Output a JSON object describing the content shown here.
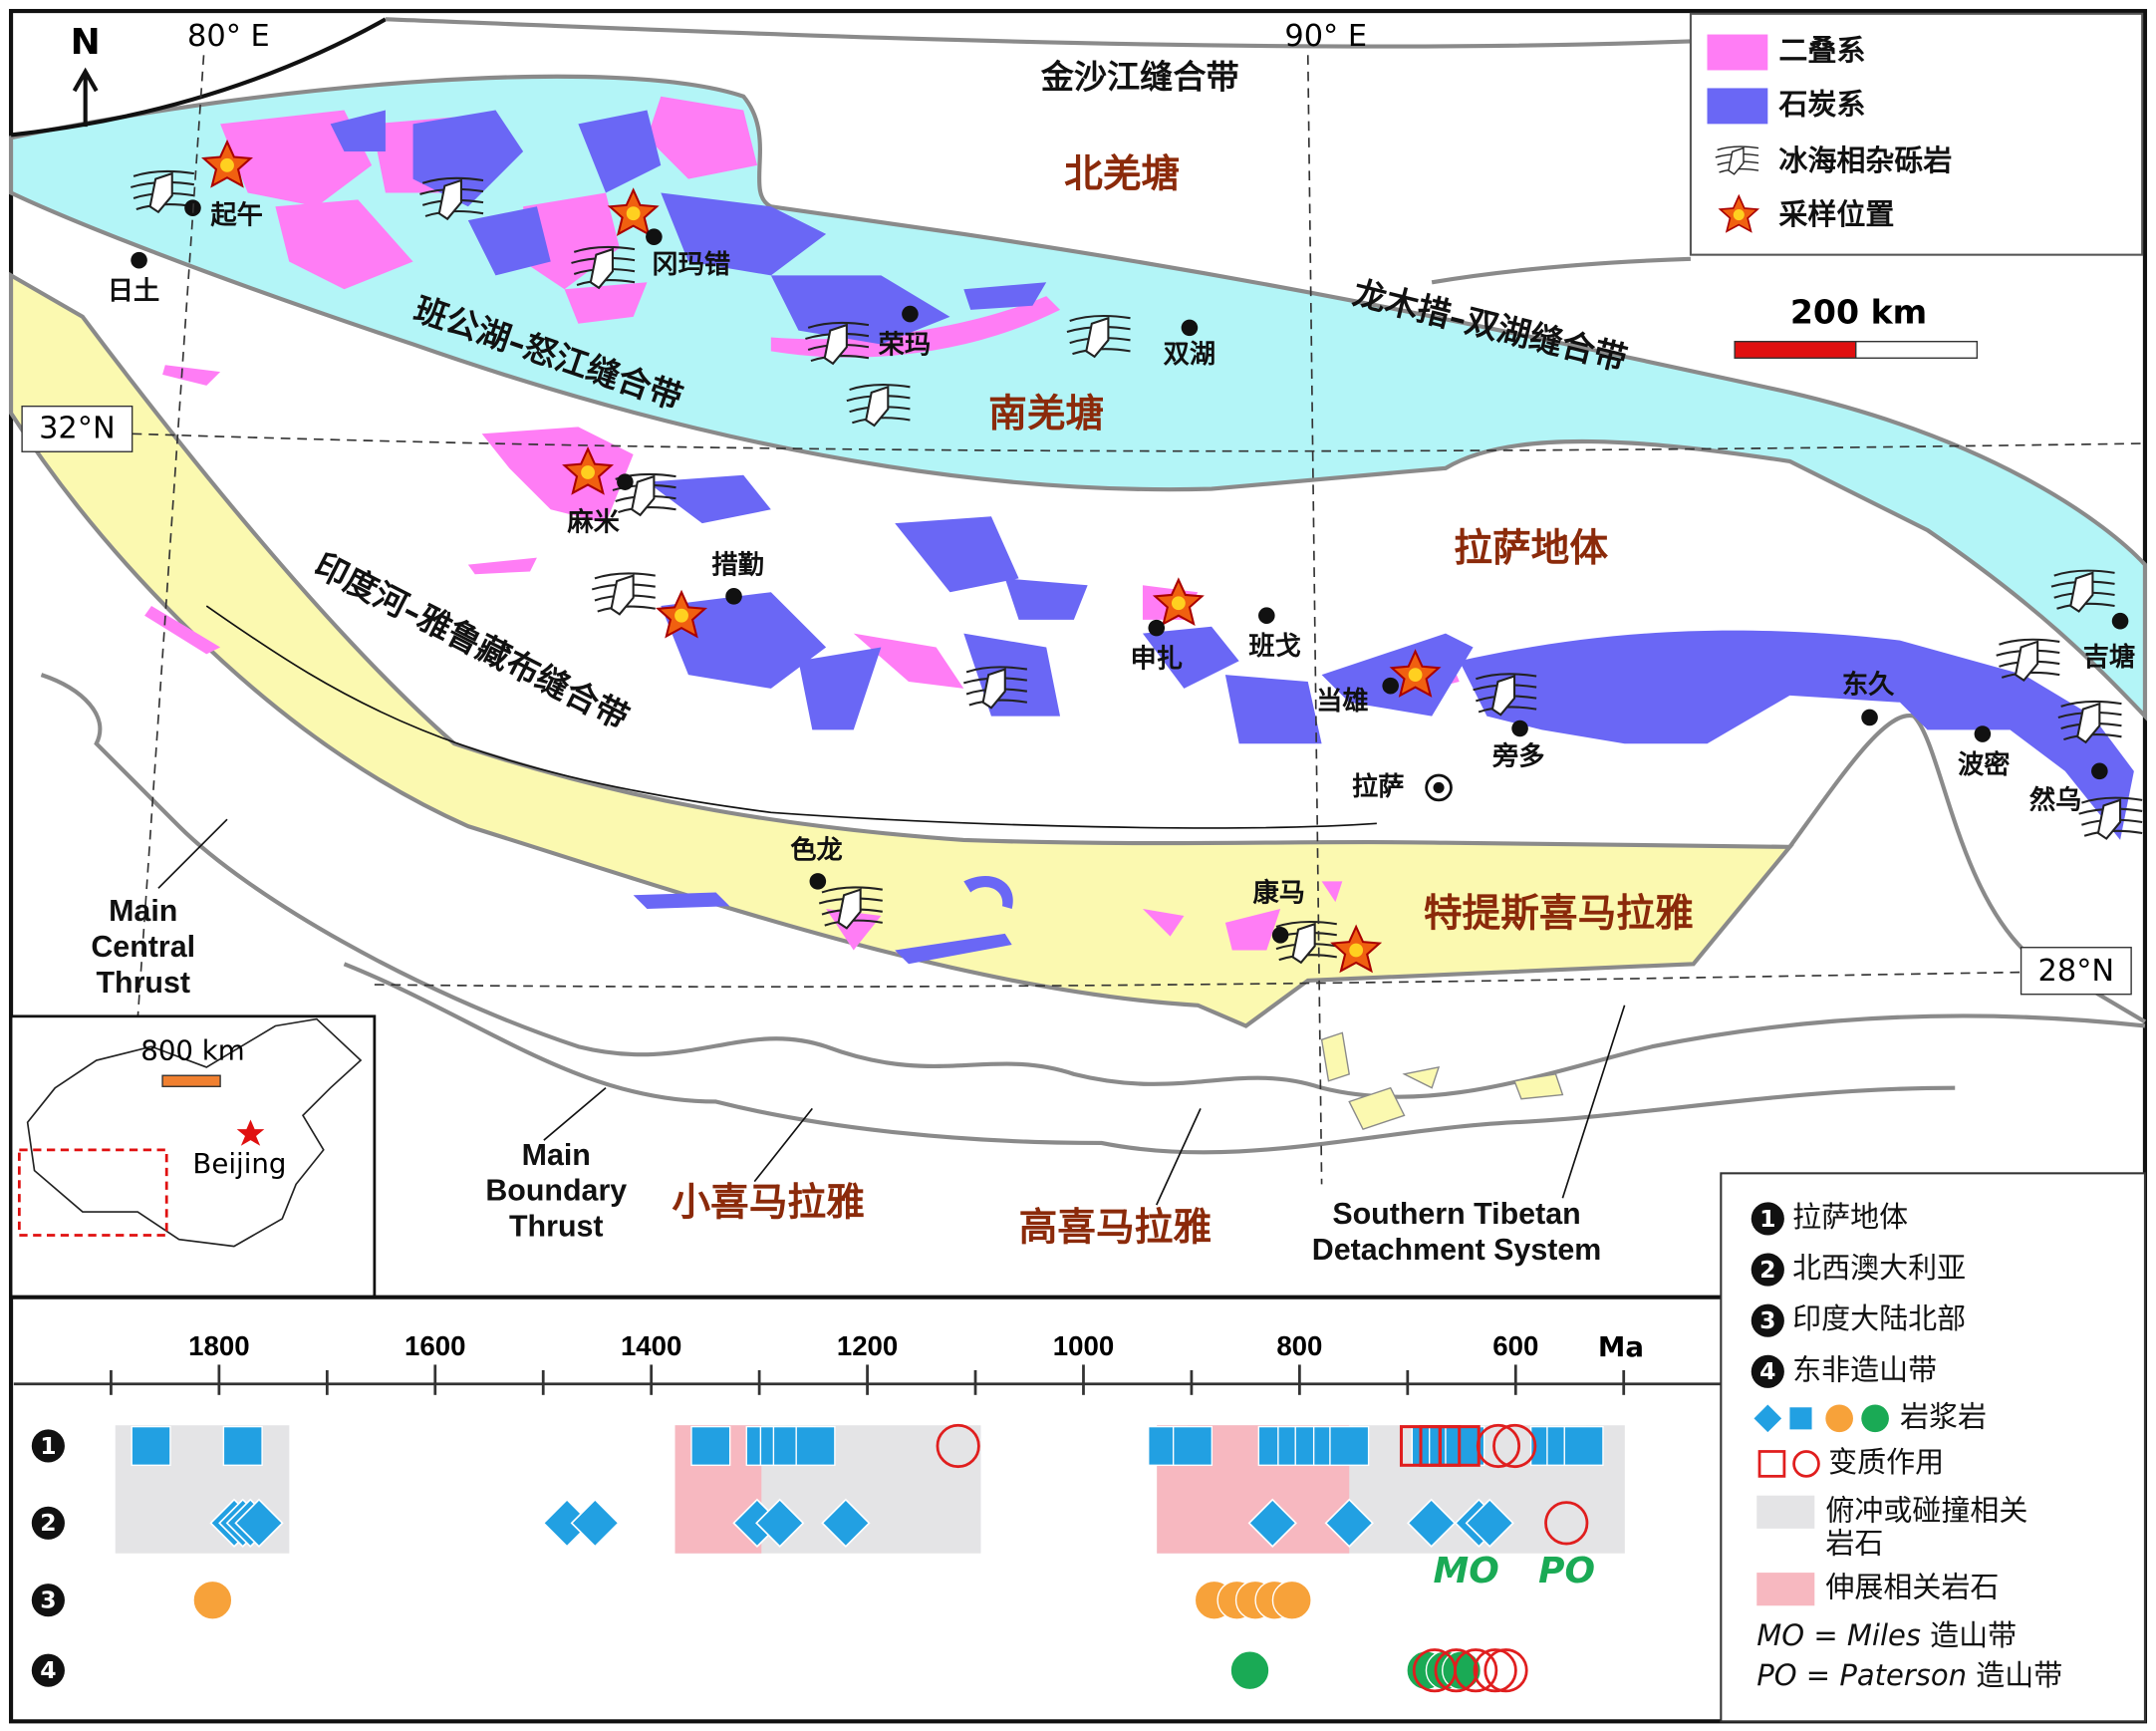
{
  "map": {
    "north": "N",
    "longitudes": [
      "80° E",
      "90° E"
    ],
    "latitudes": [
      "32°N",
      "28°N"
    ],
    "legend": [
      {
        "label": "二叠系",
        "color": "#ff7df5"
      },
      {
        "label": "石炭系",
        "color": "#6a67f5"
      },
      {
        "label": "冰海相杂砾岩"
      },
      {
        "label": "采样位置"
      }
    ],
    "scale_bar": "200 km",
    "sutures": [
      "金沙江缝合带",
      "龙木措–双湖缝合带",
      "班公湖–怒江缝合带",
      "印度河–雅鲁藏布缝合带"
    ],
    "terranes": [
      "北羌塘",
      "南羌塘",
      "拉萨地体",
      "特提斯喜马拉雅",
      "小喜马拉雅",
      "高喜马拉雅"
    ],
    "places": [
      "日土",
      "起午",
      "冈玛错",
      "荣玛",
      "双湖",
      "麻米",
      "措勤",
      "申扎",
      "班戈",
      "当雄",
      "旁多",
      "拉萨",
      "东久",
      "吉塘",
      "波密",
      "然乌",
      "色龙",
      "康马"
    ],
    "faults": [
      {
        "lines": [
          "Main",
          "Central",
          "Thrust"
        ]
      },
      {
        "lines": [
          "Main",
          "Boundary",
          "Thrust"
        ]
      },
      {
        "lines": [
          "Southern Tibetan",
          "Detachment System"
        ]
      }
    ],
    "inset": {
      "scale_bar": "800 km",
      "city": "Beijing"
    }
  },
  "timeline": {
    "unit": "Ma",
    "xlim": [
      1990,
      410
    ],
    "xticks": [
      1800,
      1600,
      1400,
      1200,
      1000,
      800,
      600
    ],
    "minor_xticks": [
      1900,
      1700,
      1500,
      1300,
      1100,
      900,
      700,
      500
    ],
    "subduction_ranges": [
      [
        1896,
        1735
      ],
      [
        1378,
        1095
      ],
      [
        932,
        499
      ]
    ],
    "extension_ranges": [
      [
        1378,
        1298
      ],
      [
        932,
        754
      ]
    ],
    "rows": [
      {
        "label": "1",
        "squares": [
          1863,
          1778,
          1345,
          1294,
          1281,
          1269,
          1248,
          922,
          899,
          820,
          802,
          786,
          769,
          754,
          678,
          662,
          647,
          568,
          553,
          537
        ],
        "metamorphic_squares": [
          688,
          670,
          652
        ],
        "metamorphic_circles": [
          1116,
          616,
          601
        ]
      },
      {
        "label": "2",
        "diamonds": [
          1786,
          1778,
          1771,
          1763,
          1478,
          1452,
          1302,
          1281,
          1220,
          825,
          754,
          678,
          634,
          624
        ],
        "metamorphic_circles": [
          553
        ]
      },
      {
        "label": "3",
        "circles": [
          1806,
          879,
          858,
          841,
          823,
          807
        ],
        "circle_color": "#f7a23a"
      },
      {
        "label": "4",
        "circles": [
          846,
          683,
          665,
          650
        ],
        "circle_color": "#1aaa55",
        "metamorphic_circles": [
          675,
          655,
          637,
          619,
          609
        ]
      }
    ],
    "annotations": [
      "MO",
      "PO"
    ],
    "legend": {
      "rows": [
        "拉萨地体",
        "北西澳大利亚",
        "印度大陆北部",
        "东非造山带"
      ],
      "magmatic": "岩浆岩",
      "metamorphic": "变质作用",
      "subduction": [
        "俯冲或碰撞相关",
        "岩石"
      ],
      "extension": "伸展相关岩石",
      "mo": {
        "abbr": "MO",
        "eq": " = ",
        "name": "Miles",
        "text": " 造山带"
      },
      "po": {
        "abbr": "PO",
        "eq": " = ",
        "name": "Paterson",
        "text": " 造山带"
      }
    }
  }
}
